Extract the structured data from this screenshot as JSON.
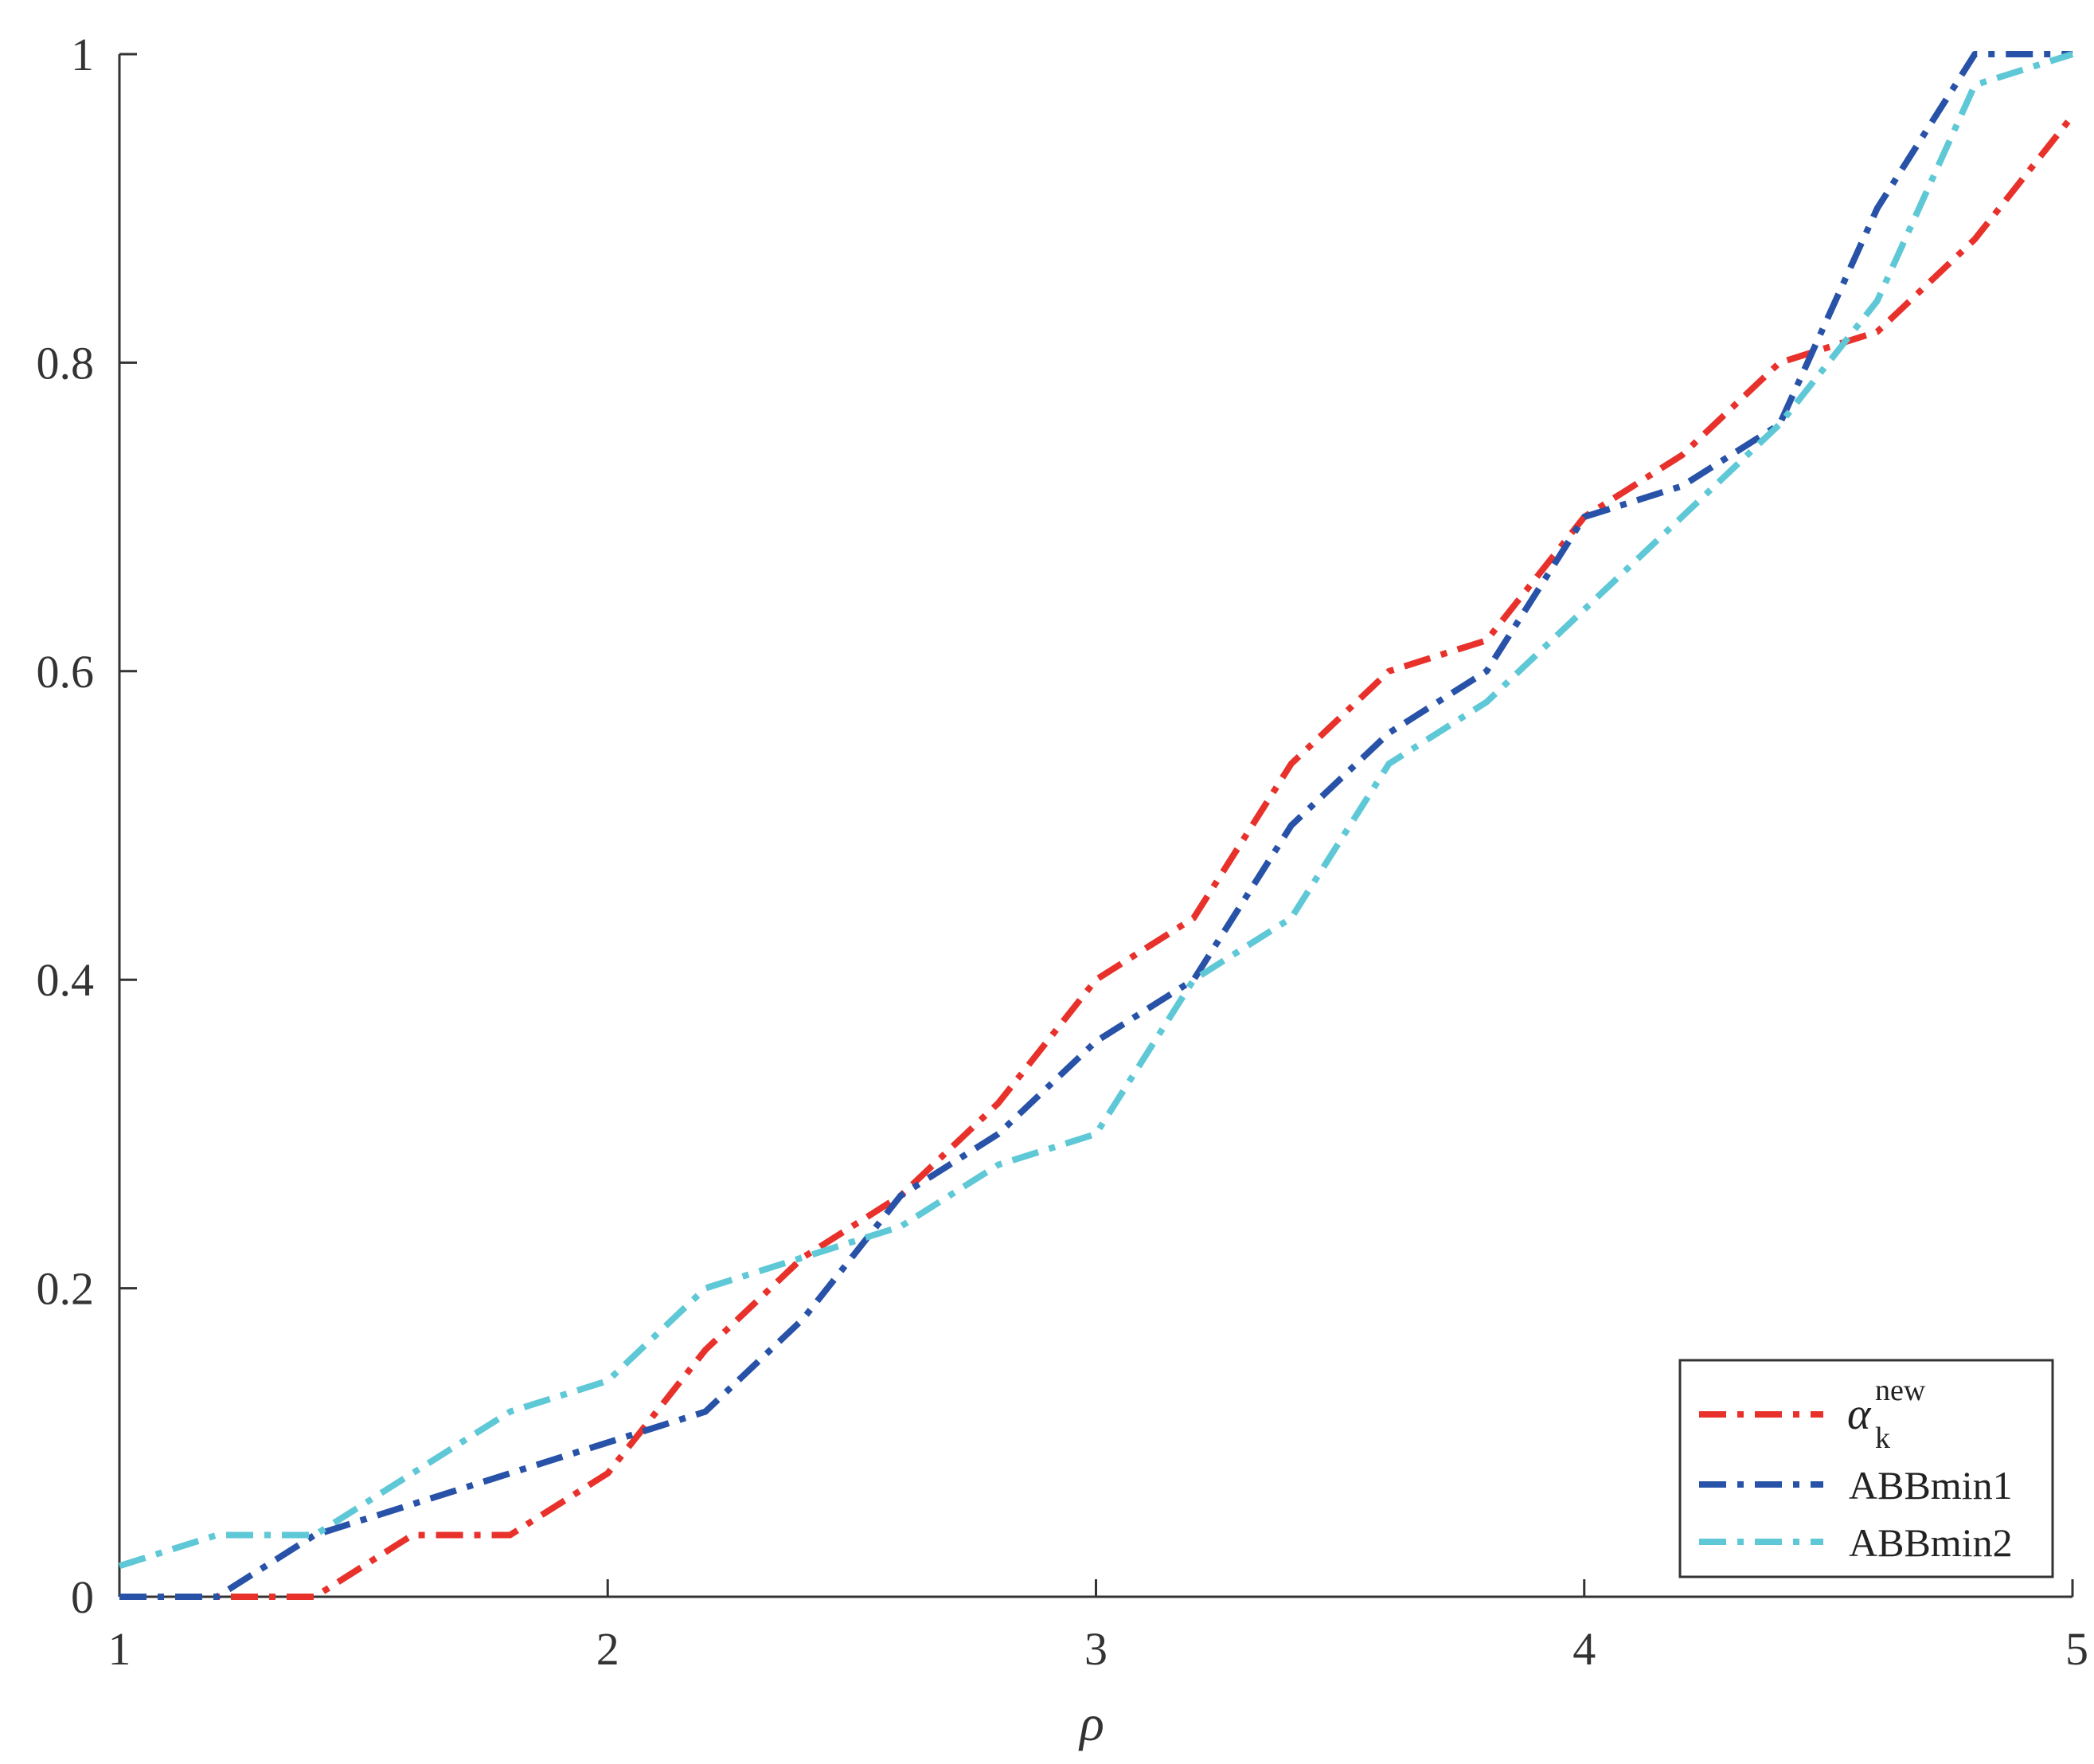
{
  "chart_data": {
    "type": "line",
    "title": "",
    "xlabel": "ρ",
    "ylabel": "",
    "xlim": [
      1,
      5
    ],
    "ylim": [
      0,
      1
    ],
    "xticks": [
      1,
      2,
      3,
      4,
      5
    ],
    "xtick_labels": [
      "1",
      "2",
      "3",
      "4",
      "5"
    ],
    "yticks": [
      0,
      0.2,
      0.4,
      0.6,
      0.8,
      1
    ],
    "ytick_labels": [
      "0",
      "0.2",
      "0.4",
      "0.6",
      "0.8",
      "1"
    ],
    "grid": false,
    "legend_position": "bottom-right",
    "line_style": "dash-dot",
    "x": [
      1.0,
      1.2,
      1.4,
      1.6,
      1.8,
      2.0,
      2.2,
      2.4,
      2.6,
      2.8,
      3.0,
      3.2,
      3.4,
      3.6,
      3.8,
      4.0,
      4.2,
      4.4,
      4.6,
      4.8,
      5.0
    ],
    "series": [
      {
        "name": "α_k^new",
        "legend_symbol": "α",
        "legend_sub": "k",
        "legend_sup": "new",
        "color": "#E8312B",
        "values": [
          0,
          0,
          0,
          0.04,
          0.04,
          0.08,
          0.16,
          0.22,
          0.26,
          0.32,
          0.4,
          0.44,
          0.54,
          0.6,
          0.62,
          0.7,
          0.74,
          0.8,
          0.82,
          0.88,
          0.96
        ]
      },
      {
        "name": "ABBmin1",
        "color": "#2752A8",
        "values": [
          0,
          0,
          0.04,
          0.06,
          0.08,
          0.1,
          0.12,
          0.18,
          0.26,
          0.3,
          0.36,
          0.4,
          0.5,
          0.56,
          0.6,
          0.7,
          0.72,
          0.76,
          0.9,
          1.0,
          1.0
        ]
      },
      {
        "name": "ABBmin2",
        "color": "#5EC8D6",
        "values": [
          0.02,
          0.04,
          0.04,
          0.08,
          0.12,
          0.14,
          0.2,
          0.22,
          0.24,
          0.28,
          0.3,
          0.4,
          0.44,
          0.54,
          0.58,
          0.64,
          0.7,
          0.76,
          0.84,
          0.98,
          1.0
        ]
      }
    ]
  }
}
